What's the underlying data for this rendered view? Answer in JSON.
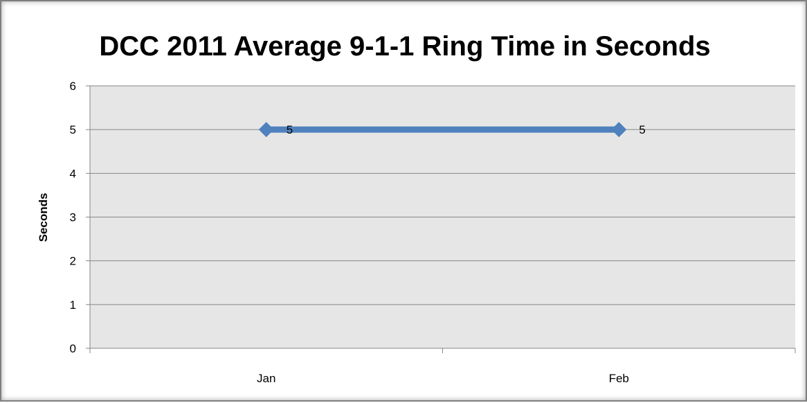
{
  "chart_data": {
    "type": "line",
    "title": "DCC 2011 Average 9-1-1 Ring Time in Seconds",
    "xlabel": "",
    "ylabel": "Seconds",
    "categories": [
      "Jan",
      "Feb"
    ],
    "series": [
      {
        "values": [
          5,
          5
        ],
        "data_labels": [
          "5",
          "5"
        ],
        "color": "#4f81bd",
        "marker": "diamond"
      }
    ],
    "ylim": [
      0,
      6
    ],
    "yticks": [
      0,
      1,
      2,
      3,
      4,
      5,
      6
    ],
    "ytick_labels": [
      "0",
      "1",
      "2",
      "3",
      "4",
      "5",
      "6"
    ],
    "grid": "horizontal",
    "plot_background": "#e6e6e6",
    "legend": "none"
  }
}
